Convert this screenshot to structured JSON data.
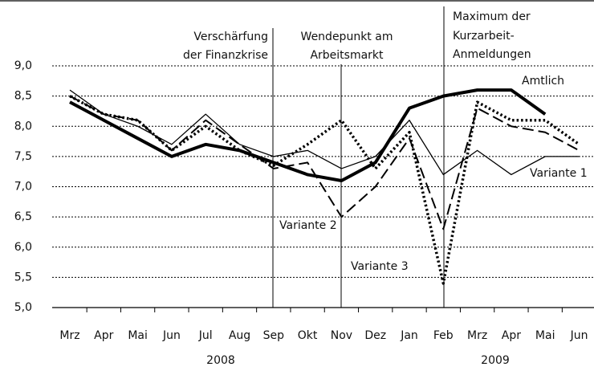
{
  "chart_data": {
    "type": "line",
    "categories": [
      "Mrz",
      "Apr",
      "Mai",
      "Jun",
      "Jul",
      "Aug",
      "Sep",
      "Okt",
      "Nov",
      "Dez",
      "Jan",
      "Feb",
      "Mrz",
      "Apr",
      "Mai",
      "Jun"
    ],
    "year_labels": [
      "2008",
      "2009"
    ],
    "ylim": [
      5,
      9
    ],
    "yticks": [
      {
        "value": 5,
        "label": "5,0"
      },
      {
        "value": 5.5,
        "label": "5,5"
      },
      {
        "value": 6,
        "label": "6,0"
      },
      {
        "value": 6.5,
        "label": "6,5"
      },
      {
        "value": 7,
        "label": "7,0"
      },
      {
        "value": 7.5,
        "label": "7,5"
      },
      {
        "value": 8,
        "label": "8,0"
      },
      {
        "value": 8.5,
        "label": "8,5"
      },
      {
        "value": 9,
        "label": "9,0"
      }
    ],
    "grid": true,
    "annotations": [
      [
        "Verschärfung",
        "der Finanzkrise"
      ],
      [
        "Wendepunkt am",
        "Arbeitsmarkt"
      ],
      [
        "Maximum der",
        "Kurzarbeit-",
        "Anmeldungen"
      ]
    ],
    "series": [
      {
        "name": "Amtlich",
        "color": "#000000",
        "dash": "solid",
        "line_width": 4,
        "values": [
          8.4,
          8.1,
          7.8,
          7.5,
          7.7,
          7.6,
          7.4,
          7.2,
          7.1,
          7.4,
          8.3,
          8.5,
          8.6,
          8.6,
          8.2,
          null
        ]
      },
      {
        "name": "Variante 1",
        "color": "#000000",
        "dash": "solid",
        "line_width": 1.3,
        "values": [
          8.6,
          8.2,
          8.0,
          7.7,
          8.2,
          7.7,
          7.5,
          7.6,
          7.3,
          7.5,
          8.1,
          7.2,
          7.6,
          7.2,
          7.5,
          7.5
        ]
      },
      {
        "name": "Variante 2",
        "color": "#000000",
        "dash": "dashed",
        "line_width": 2,
        "values": [
          8.5,
          8.2,
          8.1,
          7.6,
          8.1,
          7.7,
          7.3,
          7.4,
          6.5,
          7.0,
          7.8,
          6.3,
          8.3,
          8.0,
          7.9,
          7.6
        ]
      },
      {
        "name": "Variante 3",
        "color": "#000000",
        "dash": "dotted",
        "line_width": 3.5,
        "values": [
          8.5,
          8.2,
          8.1,
          7.6,
          8.0,
          7.6,
          7.35,
          7.7,
          8.1,
          7.3,
          7.9,
          5.4,
          8.4,
          8.1,
          8.1,
          7.7
        ]
      }
    ]
  }
}
